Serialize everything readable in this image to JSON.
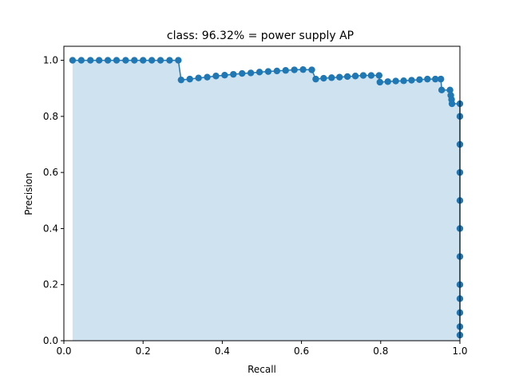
{
  "chart_data": {
    "type": "line",
    "title": "class: 96.32% = power supply AP",
    "xlabel": "Recall",
    "ylabel": "Precision",
    "xlim": [
      0.0,
      1.0
    ],
    "ylim": [
      0.0,
      1.05
    ],
    "xticks": [
      "0.0",
      "0.2",
      "0.4",
      "0.6",
      "0.8",
      "1.0"
    ],
    "yticks": [
      "0.0",
      "0.2",
      "0.4",
      "0.6",
      "0.8",
      "1.0"
    ],
    "grid": false,
    "colors": {
      "line": "#1f77b4",
      "fill": "#cfe2f0"
    },
    "series": [
      {
        "x": [
          0.022,
          0.044,
          0.067,
          0.089,
          0.111,
          0.133,
          0.156,
          0.178,
          0.2,
          0.222,
          0.244,
          0.267,
          0.289,
          0.296,
          0.318,
          0.34,
          0.362,
          0.384,
          0.406,
          0.428,
          0.45,
          0.472,
          0.494,
          0.516,
          0.538,
          0.56,
          0.582,
          0.604,
          0.626,
          0.636,
          0.656,
          0.676,
          0.696,
          0.716,
          0.736,
          0.756,
          0.776,
          0.796,
          0.798,
          0.818,
          0.838,
          0.858,
          0.878,
          0.898,
          0.918,
          0.938,
          0.952,
          0.954,
          0.975,
          0.977,
          0.979,
          0.98,
          1.0,
          1.0,
          1.0,
          1.0,
          1.0,
          1.0,
          1.0,
          1.0,
          1.0,
          1.0,
          1.0,
          1.0
        ],
        "y": [
          1.0,
          1.0,
          1.0,
          1.0,
          1.0,
          1.0,
          1.0,
          1.0,
          1.0,
          1.0,
          1.0,
          1.0,
          1.0,
          0.93,
          0.933,
          0.937,
          0.94,
          0.944,
          0.947,
          0.95,
          0.953,
          0.955,
          0.958,
          0.96,
          0.962,
          0.964,
          0.966,
          0.967,
          0.966,
          0.933,
          0.936,
          0.938,
          0.94,
          0.942,
          0.944,
          0.946,
          0.946,
          0.946,
          0.922,
          0.924,
          0.926,
          0.927,
          0.929,
          0.931,
          0.933,
          0.933,
          0.933,
          0.894,
          0.894,
          0.875,
          0.86,
          0.845,
          0.845,
          0.8,
          0.7,
          0.6,
          0.5,
          0.4,
          0.3,
          0.2,
          0.15,
          0.1,
          0.05,
          0.02
        ]
      }
    ]
  }
}
